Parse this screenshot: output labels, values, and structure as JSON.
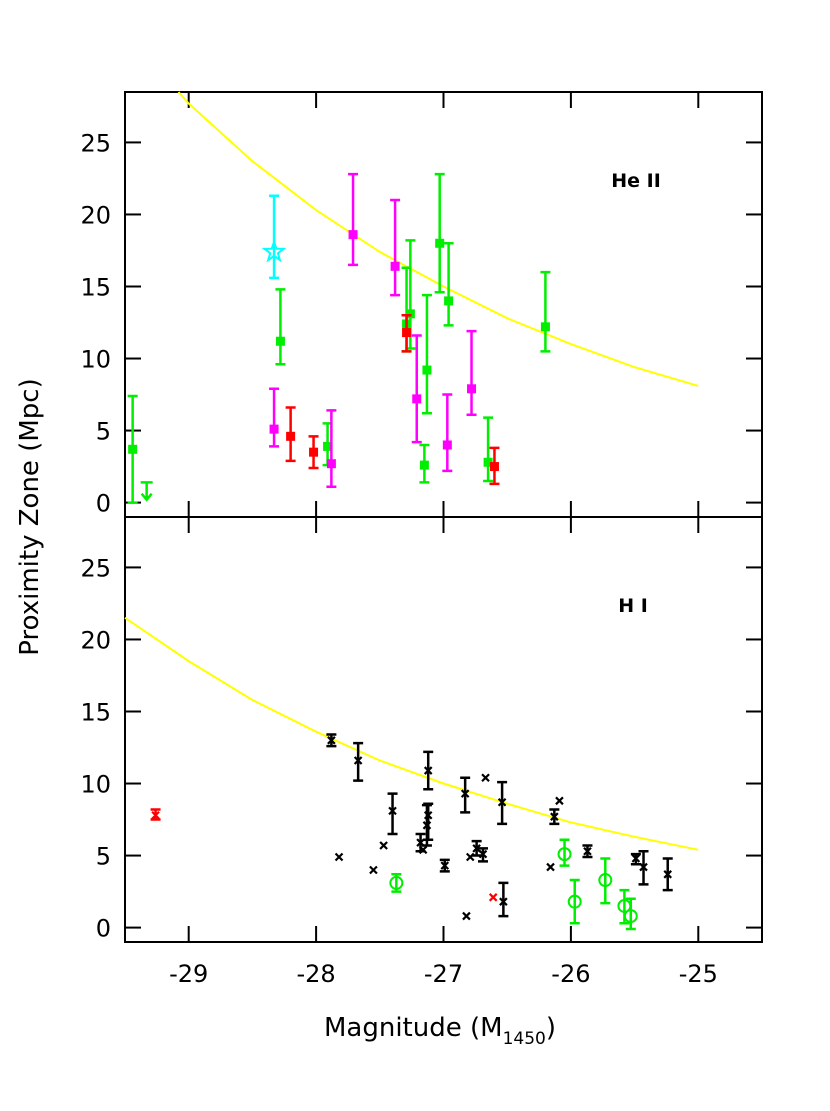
{
  "chart_data": [
    {
      "type": "scatter",
      "panel_label": "He II",
      "ylabel": "Proximity Zone (Mpc)",
      "xlim": [
        -29.5,
        -24.5
      ],
      "ylim": [
        -1,
        28.5
      ],
      "xticks": [
        -29,
        -28,
        -27,
        -26,
        -25
      ],
      "yticks": [
        0,
        5,
        10,
        15,
        20,
        25
      ],
      "xtick_labels": false,
      "curve": {
        "color": "#ffff00",
        "x": [
          -29.08,
          -29,
          -28.5,
          -28,
          -27.5,
          -27,
          -26.5,
          -26,
          -25.5,
          -25
        ],
        "values": [
          28.5,
          27.7,
          23.7,
          20.3,
          17.4,
          15.0,
          12.8,
          11.0,
          9.4,
          8.1
        ]
      },
      "series": [
        {
          "color": "#00ee00",
          "marker": "square",
          "x": [
            -29.44,
            -28.28,
            -27.91,
            -27.29,
            -27.26,
            -27.13,
            -27.15,
            -27.03,
            -26.96,
            -26.65,
            -26.2
          ],
          "values": [
            3.7,
            11.2,
            3.9,
            12.4,
            13.1,
            9.2,
            2.6,
            18.0,
            14.0,
            2.8,
            12.2
          ],
          "lower": [
            0,
            9.6,
            2.6,
            10.5,
            10.7,
            6.2,
            1.4,
            14.6,
            12.3,
            1.5,
            10.5
          ],
          "upper": [
            7.4,
            14.8,
            5.5,
            16.3,
            18.2,
            14.4,
            4.0,
            22.8,
            18.0,
            5.9,
            16.0
          ]
        },
        {
          "color": "#00ee00",
          "marker": "arrow",
          "x": [
            -29.33
          ],
          "values": [
            0.2
          ],
          "lower": [
            null
          ],
          "upper": [
            1.4
          ]
        },
        {
          "color": "#ff00ff",
          "marker": "square",
          "x": [
            -28.33,
            -27.88,
            -27.71,
            -27.38,
            -27.21,
            -26.97,
            -26.78
          ],
          "values": [
            5.1,
            2.7,
            18.6,
            16.4,
            7.2,
            4.0,
            7.9
          ],
          "lower": [
            3.9,
            1.1,
            16.5,
            14.4,
            4.2,
            2.2,
            6.1
          ],
          "upper": [
            7.9,
            6.4,
            22.8,
            21.0,
            11.6,
            7.5,
            11.9
          ]
        },
        {
          "color": "#ff0000",
          "marker": "square",
          "x": [
            -28.2,
            -28.02,
            -27.29,
            -26.6
          ],
          "values": [
            4.6,
            3.5,
            11.8,
            2.5
          ],
          "lower": [
            2.9,
            2.4,
            10.5,
            1.3
          ],
          "upper": [
            6.6,
            4.6,
            13.0,
            3.8
          ]
        },
        {
          "color": "#00ffff",
          "marker": "star",
          "x": [
            -28.33
          ],
          "values": [
            17.4
          ],
          "lower": [
            15.6
          ],
          "upper": [
            21.3
          ]
        }
      ]
    },
    {
      "type": "scatter",
      "panel_label": "H I",
      "xlabel": {
        "main": "Magnitude (M",
        "subscript": "1450",
        "close": ")"
      },
      "xlim": [
        -29.5,
        -24.5
      ],
      "ylim": [
        -1,
        28.5
      ],
      "xticks": [
        -29,
        -28,
        -27,
        -26,
        -25
      ],
      "yticks": [
        0,
        5,
        10,
        15,
        20,
        25
      ],
      "xtick_labels": true,
      "curve": {
        "color": "#ffff00",
        "x": [
          -29.5,
          -29,
          -28.5,
          -28,
          -27.5,
          -27,
          -26.5,
          -26,
          -25.5,
          -25
        ],
        "values": [
          21.5,
          18.5,
          15.8,
          13.6,
          11.6,
          10.0,
          8.6,
          7.3,
          6.3,
          5.4
        ]
      },
      "series": [
        {
          "color": "#000000",
          "marker": "x",
          "x": [
            -27.88,
            -27.67,
            -27.82,
            -27.55,
            -27.47,
            -27.4,
            -27.18,
            -27.16,
            -27.13,
            -27.12,
            -27.12,
            -26.99,
            -26.83,
            -26.82,
            -26.79,
            -26.74,
            -26.69,
            -26.67,
            -26.54,
            -26.53,
            -26.16,
            -26.13,
            -26.09,
            -25.87,
            -25.49,
            -25.43,
            -25.24
          ],
          "values": [
            13.0,
            11.6,
            4.9,
            4.0,
            5.7,
            8.1,
            5.9,
            5.4,
            7.1,
            7.8,
            10.9,
            4.3,
            9.3,
            0.8,
            4.9,
            5.5,
            5.1,
            10.4,
            8.7,
            1.8,
            4.2,
            7.7,
            8.8,
            5.3,
            4.8,
            4.2,
            3.7
          ],
          "lower": [
            12.6,
            10.2,
            null,
            null,
            null,
            6.5,
            5.3,
            null,
            5.7,
            6.1,
            9.6,
            3.9,
            8.0,
            null,
            null,
            5.0,
            4.6,
            null,
            7.2,
            0.8,
            null,
            7.2,
            null,
            4.9,
            4.4,
            3.0,
            2.6
          ],
          "upper": [
            13.4,
            12.8,
            null,
            null,
            null,
            9.3,
            6.5,
            null,
            8.5,
            8.6,
            12.2,
            4.7,
            10.4,
            null,
            null,
            6.0,
            5.5,
            null,
            10.1,
            3.1,
            null,
            8.2,
            null,
            5.7,
            5.1,
            5.3,
            4.8
          ]
        },
        {
          "color": "#ff0000",
          "marker": "x",
          "x": [
            -29.26,
            -26.61
          ],
          "values": [
            7.8,
            2.1
          ],
          "lower": [
            7.5,
            null
          ],
          "upper": [
            8.2,
            null
          ]
        },
        {
          "color": "#00ee00",
          "marker": "circle",
          "x": [
            -27.37,
            -26.05,
            -25.97,
            -25.73,
            -25.58,
            -25.53
          ],
          "values": [
            3.1,
            5.1,
            1.8,
            3.3,
            1.5,
            0.8
          ],
          "lower": [
            2.5,
            4.3,
            0.3,
            1.7,
            0.3,
            -0.1
          ],
          "upper": [
            3.7,
            6.1,
            3.3,
            4.8,
            2.6,
            2.0
          ]
        }
      ]
    }
  ]
}
